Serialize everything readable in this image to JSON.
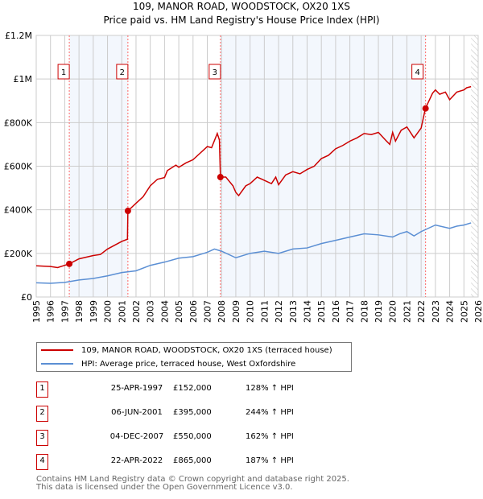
{
  "chart_data": {
    "type": "line",
    "title": "109, MANOR ROAD, WOODSTOCK, OX20 1XS",
    "subtitle": "Price paid vs. HM Land Registry's House Price Index (HPI)",
    "xlim": [
      1995,
      2026
    ],
    "ylim": [
      0,
      1200000
    ],
    "x_ticks": [
      "1995",
      "1996",
      "1997",
      "1998",
      "1999",
      "2000",
      "2001",
      "2002",
      "2003",
      "2004",
      "2005",
      "2006",
      "2007",
      "2008",
      "2009",
      "2010",
      "2011",
      "2012",
      "2013",
      "2014",
      "2015",
      "2016",
      "2017",
      "2018",
      "2019",
      "2020",
      "2021",
      "2022",
      "2023",
      "2024",
      "2025",
      "2026"
    ],
    "y_ticks": [
      {
        "v": 0,
        "label": "£0"
      },
      {
        "v": 200000,
        "label": "£200K"
      },
      {
        "v": 400000,
        "label": "£400K"
      },
      {
        "v": 600000,
        "label": "£600K"
      },
      {
        "v": 800000,
        "label": "£800K"
      },
      {
        "v": 1000000,
        "label": "£1M"
      },
      {
        "v": 1200000,
        "label": "£1.2M"
      }
    ],
    "grid": true,
    "series": [
      {
        "name": "109, MANOR ROAD, WOODSTOCK, OX20 1XS (terraced house)",
        "color": "#cc0000",
        "x": [
          1995,
          1996,
          1996.5,
          1997.32,
          1998,
          1999,
          1999.5,
          2000,
          2001,
          2001.4,
          2001.43,
          2002,
          2002.5,
          2003,
          2003.5,
          2004,
          2004.2,
          2004.8,
          2005,
          2005.5,
          2006,
          2006.5,
          2007,
          2007.3,
          2007.7,
          2007.85,
          2007.92,
          2008.3,
          2008.8,
          2009,
          2009.2,
          2009.7,
          2010,
          2010.5,
          2011,
          2011.5,
          2011.8,
          2012,
          2012.5,
          2013,
          2013.5,
          2014,
          2014.5,
          2015,
          2015.5,
          2016,
          2016.5,
          2017,
          2017.5,
          2018,
          2018.5,
          2019,
          2019.5,
          2019.8,
          2020,
          2020.2,
          2020.6,
          2021,
          2021.5,
          2022,
          2022.3,
          2022.8,
          2023,
          2023.3,
          2023.7,
          2024,
          2024.5,
          2025,
          2025.2,
          2025.5
        ],
        "y": [
          143000,
          140000,
          135000,
          152000,
          175000,
          190000,
          195000,
          220000,
          255000,
          265000,
          395000,
          430000,
          460000,
          510000,
          540000,
          548000,
          580000,
          605000,
          595000,
          615000,
          630000,
          660000,
          690000,
          685000,
          750000,
          720000,
          550000,
          550000,
          510000,
          480000,
          465000,
          510000,
          520000,
          550000,
          535000,
          520000,
          550000,
          515000,
          560000,
          575000,
          565000,
          585000,
          600000,
          635000,
          650000,
          680000,
          695000,
          715000,
          730000,
          750000,
          745000,
          755000,
          720000,
          700000,
          755000,
          715000,
          765000,
          780000,
          730000,
          775000,
          865000,
          935000,
          950000,
          930000,
          940000,
          905000,
          940000,
          950000,
          960000,
          965000
        ]
      },
      {
        "name": "HPI: Average price, terraced house, West Oxfordshire",
        "color": "#5b8fd4",
        "x": [
          1995,
          1996,
          1997,
          1998,
          1999,
          2000,
          2001,
          2002,
          2003,
          2004,
          2005,
          2006,
          2007,
          2007.5,
          2008,
          2009,
          2010,
          2011,
          2012,
          2013,
          2014,
          2015,
          2016,
          2017,
          2018,
          2019,
          2020,
          2020.5,
          2021,
          2021.5,
          2022,
          2023,
          2024,
          2024.5,
          2025,
          2025.5
        ],
        "y": [
          65000,
          63000,
          67000,
          78000,
          85000,
          97000,
          112000,
          120000,
          145000,
          160000,
          178000,
          185000,
          205000,
          220000,
          210000,
          180000,
          200000,
          210000,
          200000,
          220000,
          225000,
          245000,
          260000,
          275000,
          290000,
          285000,
          275000,
          290000,
          300000,
          280000,
          300000,
          330000,
          315000,
          325000,
          330000,
          340000
        ]
      }
    ],
    "sales": [
      {
        "n": "1",
        "x": 1997.32,
        "y": 152000,
        "date": "25-APR-1997",
        "price": "£152,000",
        "hpi": "128% ↑ HPI"
      },
      {
        "n": "2",
        "x": 2001.43,
        "y": 395000,
        "date": "06-JUN-2001",
        "price": "£395,000",
        "hpi": "244% ↑ HPI"
      },
      {
        "n": "3",
        "x": 2007.92,
        "y": 550000,
        "date": "04-DEC-2007",
        "price": "£550,000",
        "hpi": "162% ↑ HPI"
      },
      {
        "n": "4",
        "x": 2022.31,
        "y": 865000,
        "date": "22-APR-2022",
        "price": "£865,000",
        "hpi": "187% ↑ HPI"
      }
    ],
    "legend_position": "below"
  },
  "footer": {
    "line1": "Contains HM Land Registry data © Crown copyright and database right 2025.",
    "line2": "This data is licensed under the Open Government Licence v3.0."
  }
}
